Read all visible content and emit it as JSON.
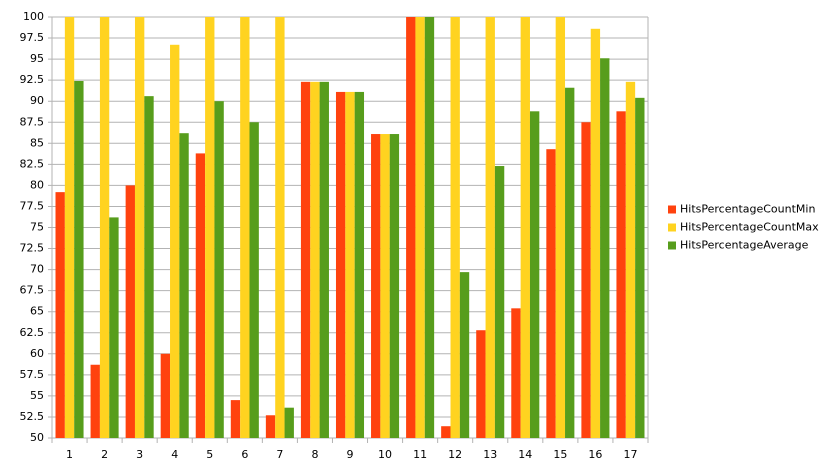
{
  "chart_data": {
    "type": "bar",
    "categories": [
      "1",
      "2",
      "3",
      "4",
      "5",
      "6",
      "7",
      "8",
      "9",
      "10",
      "11",
      "12",
      "13",
      "14",
      "15",
      "16",
      "17"
    ],
    "series": [
      {
        "name": "HitsPercentageCountMin",
        "color": "#ff420e",
        "values": [
          79.2,
          58.7,
          80,
          60,
          83.8,
          54.5,
          52.7,
          92.3,
          91.1,
          86.1,
          100,
          51.4,
          62.8,
          65.4,
          84.3,
          87.5,
          88.8
        ]
      },
      {
        "name": "HitsPercentageCountMax",
        "color": "#ffd320",
        "values": [
          100,
          100,
          100,
          96.7,
          100,
          100,
          100,
          92.3,
          91.1,
          86.1,
          100,
          100,
          100,
          100,
          100,
          98.6,
          92.3
        ]
      },
      {
        "name": "HitsPercentageAverage",
        "color": "#579d1c",
        "values": [
          92.4,
          76.2,
          90.6,
          86.2,
          90,
          87.5,
          53.6,
          92.3,
          91.1,
          86.1,
          100,
          69.7,
          82.3,
          88.8,
          91.6,
          95.1,
          90.4
        ]
      }
    ],
    "ylim": [
      50,
      100
    ],
    "yticks": [
      50,
      52.5,
      55,
      57.5,
      60,
      62.5,
      65,
      67.5,
      70,
      72.5,
      75,
      77.5,
      80,
      82.5,
      85,
      87.5,
      90,
      92.5,
      95,
      97.5,
      100
    ],
    "grid": true,
    "legend": "right"
  }
}
